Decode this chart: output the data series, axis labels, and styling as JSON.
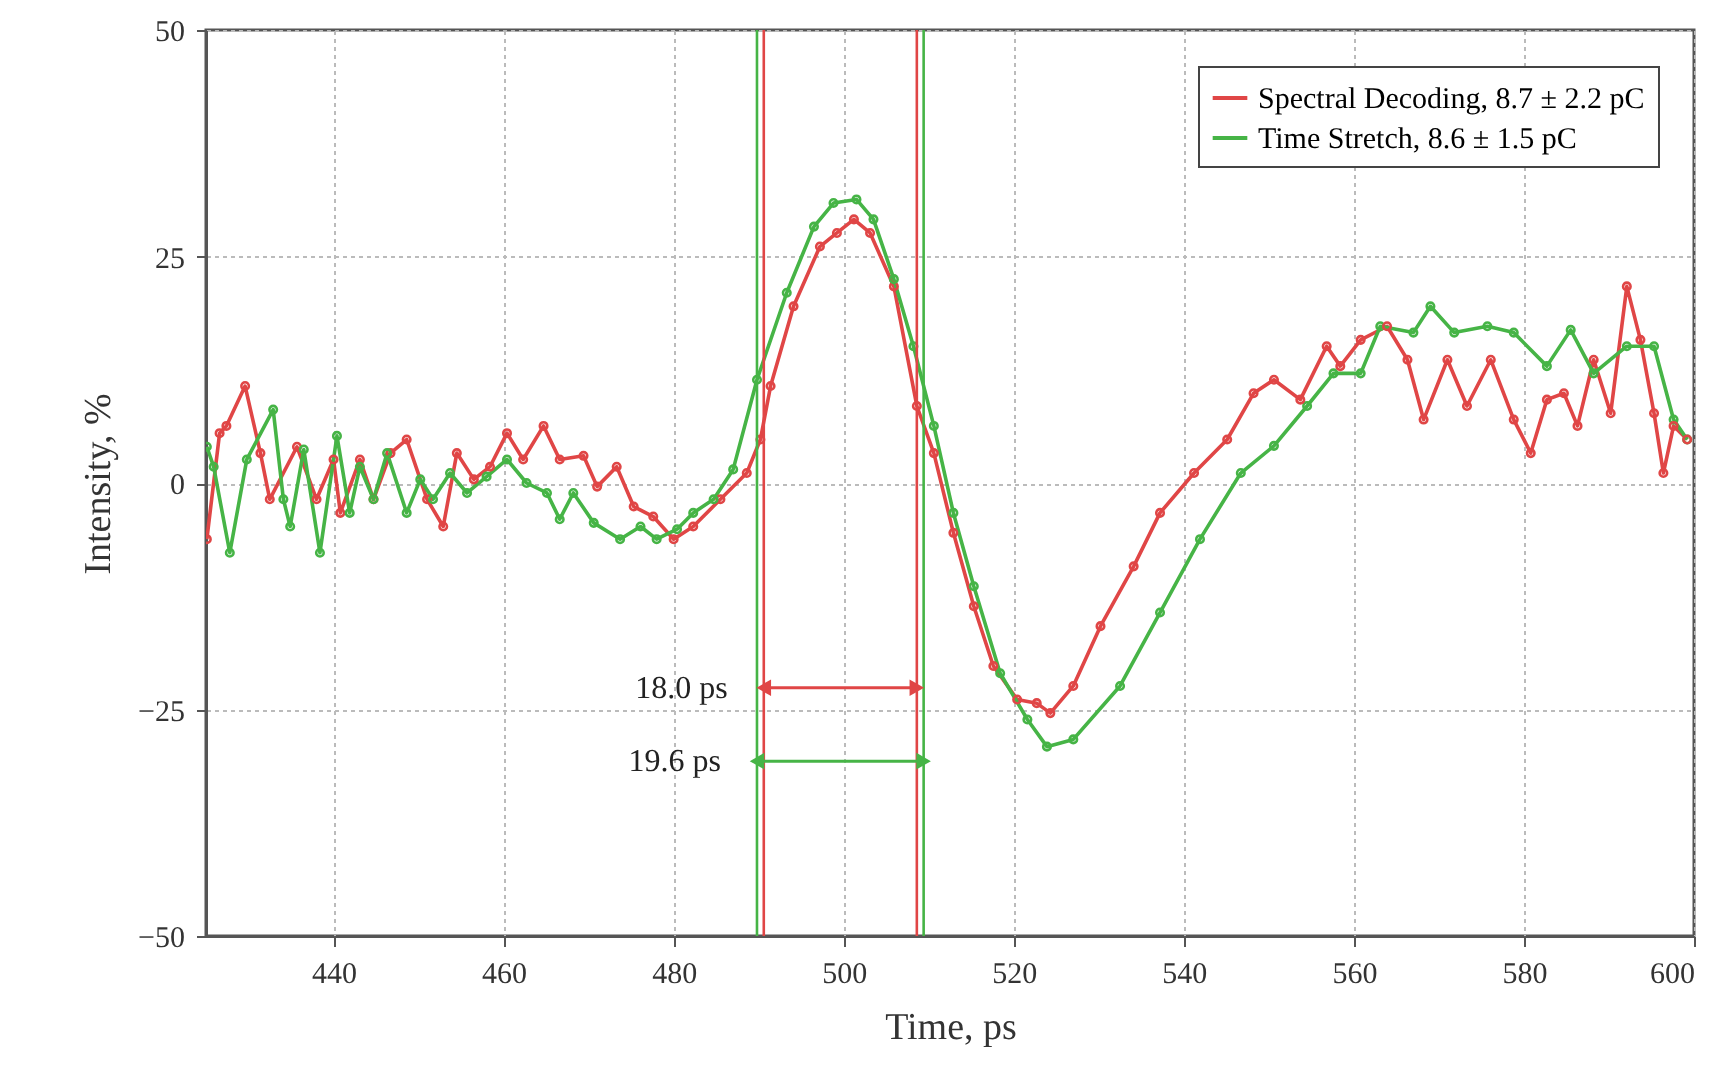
{
  "chart_data": {
    "type": "line",
    "xlabel": "Time, ps",
    "ylabel": "Intensity, %",
    "xlim": [
      425,
      600
    ],
    "ylim": [
      -50,
      50
    ],
    "xticks": [
      440,
      460,
      480,
      500,
      520,
      540,
      560,
      580,
      600
    ],
    "yticks": [
      -50,
      -25,
      0,
      25,
      50
    ],
    "grid": true,
    "legend": "top right",
    "marker": "circle",
    "line_style": "solid",
    "series": [
      {
        "name": "Spectral Decoding, 8.7 ± 2.2 pC",
        "color": "#e04646",
        "x": [
          425.1,
          426.6,
          427.4,
          429.6,
          431.4,
          432.5,
          435.7,
          438.0,
          440.0,
          440.8,
          443.1,
          444.7,
          446.7,
          448.6,
          451.0,
          452.9,
          454.5,
          456.5,
          458.4,
          460.4,
          462.3,
          464.7,
          466.6,
          469.4,
          471.0,
          473.3,
          475.3,
          477.6,
          480.0,
          482.3,
          485.5,
          488.6,
          490.2,
          491.4,
          494.1,
          497.2,
          499.2,
          501.2,
          503.1,
          505.9,
          508.6,
          510.6,
          512.9,
          515.3,
          517.6,
          520.4,
          522.7,
          524.3,
          527.0,
          530.2,
          534.1,
          537.2,
          541.2,
          545.1,
          548.2,
          550.6,
          553.7,
          556.8,
          558.4,
          560.8,
          563.9,
          566.3,
          568.2,
          571.0,
          573.3,
          576.1,
          578.8,
          580.8,
          582.7,
          584.7,
          586.3,
          588.2,
          590.2,
          592.1,
          593.7,
          595.3,
          596.4,
          597.6,
          599.2
        ],
        "values": [
          -6.2,
          5.5,
          6.3,
          10.7,
          3.3,
          -1.8,
          4.0,
          -1.8,
          2.6,
          -3.3,
          2.6,
          -1.8,
          3.3,
          4.8,
          -1.8,
          -4.8,
          3.3,
          0.4,
          1.8,
          5.5,
          2.6,
          6.3,
          2.6,
          3.0,
          -0.4,
          1.8,
          -2.6,
          -3.7,
          -6.2,
          -4.8,
          -1.8,
          1.1,
          4.8,
          10.7,
          19.5,
          26.1,
          27.6,
          29.1,
          27.6,
          21.7,
          8.5,
          3.3,
          -5.5,
          -13.6,
          -20.2,
          -23.9,
          -24.3,
          -25.4,
          -22.4,
          -15.8,
          -9.2,
          -3.3,
          1.1,
          4.8,
          9.9,
          11.4,
          9.2,
          15.1,
          12.9,
          15.8,
          17.3,
          13.6,
          7.0,
          13.6,
          8.5,
          13.6,
          7.0,
          3.3,
          9.2,
          9.9,
          6.3,
          13.6,
          7.7,
          21.7,
          15.8,
          7.7,
          1.1,
          6.3,
          4.8
        ]
      },
      {
        "name": "Time Stretch, 8.6 ± 1.5 pC",
        "color": "#46b446",
        "x": [
          425.1,
          425.9,
          427.8,
          429.8,
          432.9,
          434.1,
          434.9,
          436.5,
          438.4,
          440.4,
          441.9,
          443.1,
          444.7,
          446.3,
          448.6,
          450.2,
          451.7,
          453.7,
          455.7,
          458.0,
          460.4,
          462.7,
          465.1,
          466.6,
          468.2,
          470.6,
          473.7,
          476.1,
          478.0,
          480.4,
          482.3,
          484.7,
          487.0,
          489.8,
          493.3,
          496.5,
          498.8,
          501.5,
          503.5,
          505.9,
          508.2,
          510.6,
          512.9,
          515.3,
          518.4,
          521.6,
          523.9,
          527.0,
          532.5,
          537.2,
          541.9,
          546.7,
          550.6,
          554.5,
          557.6,
          560.8,
          563.1,
          567.0,
          569.0,
          571.8,
          575.7,
          578.8,
          582.7,
          585.5,
          588.2,
          592.1,
          595.3,
          597.6,
          599.2
        ],
        "values": [
          4.0,
          1.8,
          -7.7,
          2.6,
          8.1,
          -1.8,
          -4.8,
          3.7,
          -7.7,
          5.2,
          -3.3,
          1.8,
          -1.8,
          3.3,
          -3.3,
          0.4,
          -1.8,
          1.1,
          -1.1,
          0.7,
          2.6,
          0,
          -1.1,
          -4.0,
          -1.1,
          -4.4,
          -6.2,
          -4.8,
          -6.2,
          -5.1,
          -3.3,
          -1.8,
          1.5,
          11.4,
          21.0,
          28.3,
          30.9,
          31.3,
          29.1,
          22.5,
          15.1,
          6.3,
          -3.3,
          -11.4,
          -21.0,
          -26.1,
          -29.1,
          -28.3,
          -22.4,
          -14.3,
          -6.2,
          1.1,
          4.1,
          8.5,
          12.1,
          12.1,
          17.3,
          16.6,
          19.5,
          16.6,
          17.3,
          16.6,
          12.9,
          16.9,
          12.1,
          15.1,
          15.1,
          7.0,
          4.8
        ]
      }
    ],
    "ref_lines": [
      {
        "axis": "x",
        "value": 490.6,
        "color": "#e04646"
      },
      {
        "axis": "x",
        "value": 508.6,
        "color": "#e04646"
      },
      {
        "axis": "x",
        "value": 489.8,
        "color": "#46b446"
      },
      {
        "axis": "x",
        "value": 509.4,
        "color": "#46b446"
      }
    ],
    "annotations": [
      {
        "text": "18.0 ps",
        "x": 490.6,
        "y": -22.6
      },
      {
        "text": "19.6 ps",
        "x": 489.8,
        "y": -30.7
      }
    ]
  }
}
